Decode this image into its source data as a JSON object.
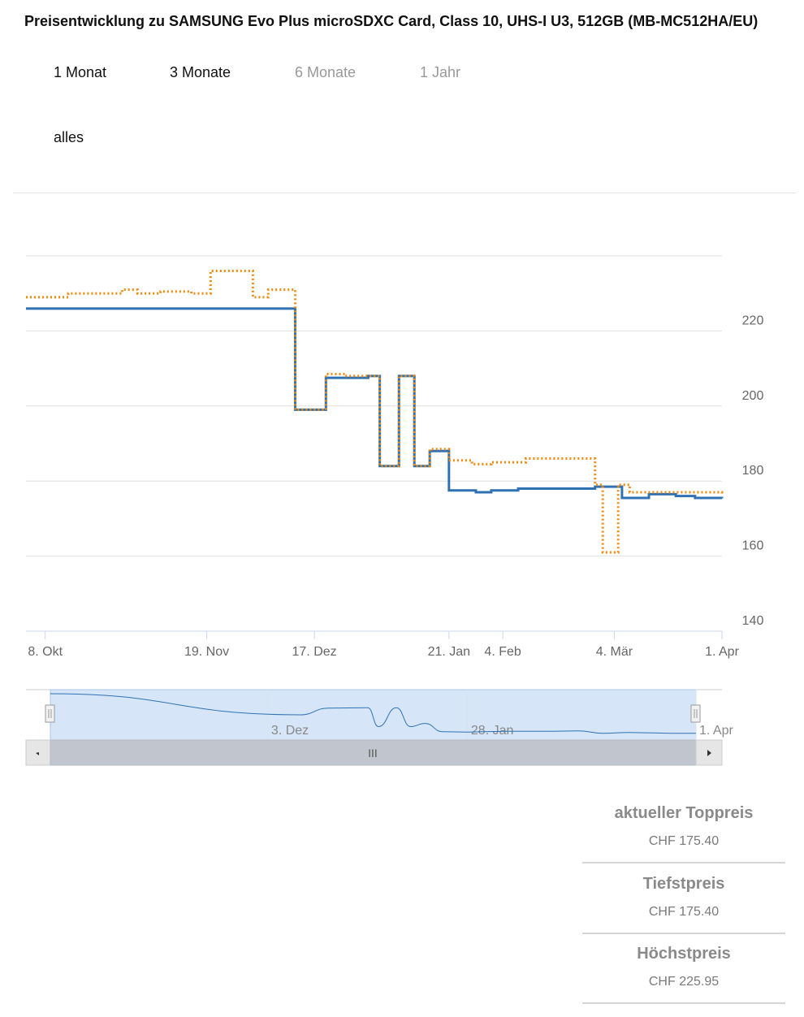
{
  "title": "Preisentwicklung zu SAMSUNG Evo Plus microSDXC Card, Class 10, UHS-I U3, 512GB (MB-MC512HA/EU)",
  "range_selector": {
    "buttons": [
      {
        "label": "1 Monat",
        "state": "enabled"
      },
      {
        "label": "3 Monate",
        "state": "enabled"
      },
      {
        "label": "6 Monate",
        "state": "disabled"
      },
      {
        "label": "1 Jahr",
        "state": "disabled"
      },
      {
        "label": "alles",
        "state": "enabled"
      }
    ]
  },
  "chart_data": {
    "type": "line",
    "step": true,
    "ylim": [
      140,
      240
    ],
    "y_ticks": [
      140,
      160,
      180,
      200,
      220
    ],
    "y_axis_position": "right",
    "grid": true,
    "x_ticks": [
      {
        "label": "8. Okt",
        "date": "2019-10-08"
      },
      {
        "label": "19. Nov",
        "date": "2019-11-19"
      },
      {
        "label": "17. Dez",
        "date": "2019-12-17"
      },
      {
        "label": "21. Jan",
        "date": "2020-01-21"
      },
      {
        "label": "4. Feb",
        "date": "2020-02-04"
      },
      {
        "label": "4. Mär",
        "date": "2020-03-04"
      },
      {
        "label": "1. Apr",
        "date": "2020-04-01"
      }
    ],
    "x_range": [
      "2019-10-03",
      "2020-04-01"
    ],
    "series": [
      {
        "color": "#2f72b4",
        "style": "solid",
        "points": [
          [
            "2019-10-03",
            225.95
          ],
          [
            "2019-12-12",
            199
          ],
          [
            "2019-12-20",
            207.5
          ],
          [
            "2019-12-31",
            208
          ],
          [
            "2020-01-03",
            184
          ],
          [
            "2020-01-08",
            208
          ],
          [
            "2020-01-12",
            184
          ],
          [
            "2020-01-16",
            188
          ],
          [
            "2020-01-21",
            177.5
          ],
          [
            "2020-01-28",
            177
          ],
          [
            "2020-02-01",
            177.5
          ],
          [
            "2020-02-08",
            178
          ],
          [
            "2020-02-14",
            178
          ],
          [
            "2020-02-21",
            178
          ],
          [
            "2020-02-28",
            178.5
          ],
          [
            "2020-03-06",
            175.5
          ],
          [
            "2020-03-13",
            176.5
          ],
          [
            "2020-03-20",
            176
          ],
          [
            "2020-03-25",
            175.5
          ],
          [
            "2020-04-01",
            175.4
          ]
        ]
      },
      {
        "color": "#f08a0e",
        "style": "dotted",
        "points": [
          [
            "2019-10-03",
            229
          ],
          [
            "2019-10-14",
            230
          ],
          [
            "2019-10-28",
            231
          ],
          [
            "2019-11-01",
            230
          ],
          [
            "2019-11-07",
            230.5
          ],
          [
            "2019-11-15",
            230
          ],
          [
            "2019-11-20",
            236
          ],
          [
            "2019-12-01",
            229
          ],
          [
            "2019-12-05",
            231
          ],
          [
            "2019-12-12",
            199
          ],
          [
            "2019-12-20",
            208.5
          ],
          [
            "2019-12-25",
            208
          ],
          [
            "2020-01-03",
            184
          ],
          [
            "2020-01-08",
            208
          ],
          [
            "2020-01-12",
            184
          ],
          [
            "2020-01-16",
            188.5
          ],
          [
            "2020-01-21",
            185.5
          ],
          [
            "2020-01-27",
            184.5
          ],
          [
            "2020-02-01",
            185
          ],
          [
            "2020-02-10",
            186
          ],
          [
            "2020-02-17",
            186
          ],
          [
            "2020-02-28",
            179
          ],
          [
            "2020-03-01",
            161
          ],
          [
            "2020-03-05",
            179
          ],
          [
            "2020-03-08",
            177
          ],
          [
            "2020-04-01",
            176.5
          ]
        ]
      }
    ],
    "navigator": {
      "x_labels": [
        {
          "label": "3. Dez",
          "date": "2019-12-03"
        },
        {
          "label": "28. Jan",
          "date": "2020-01-28"
        },
        {
          "label": "1. Apr",
          "date": "2020-04-01"
        }
      ],
      "scrollbar_grip": "III"
    }
  },
  "stats": [
    {
      "label": "aktueller Toppreis",
      "value": "CHF 175.40"
    },
    {
      "label": "Tiefstpreis",
      "value": "CHF 175.40"
    },
    {
      "label": "Höchstpreis",
      "value": "CHF 225.95"
    }
  ]
}
